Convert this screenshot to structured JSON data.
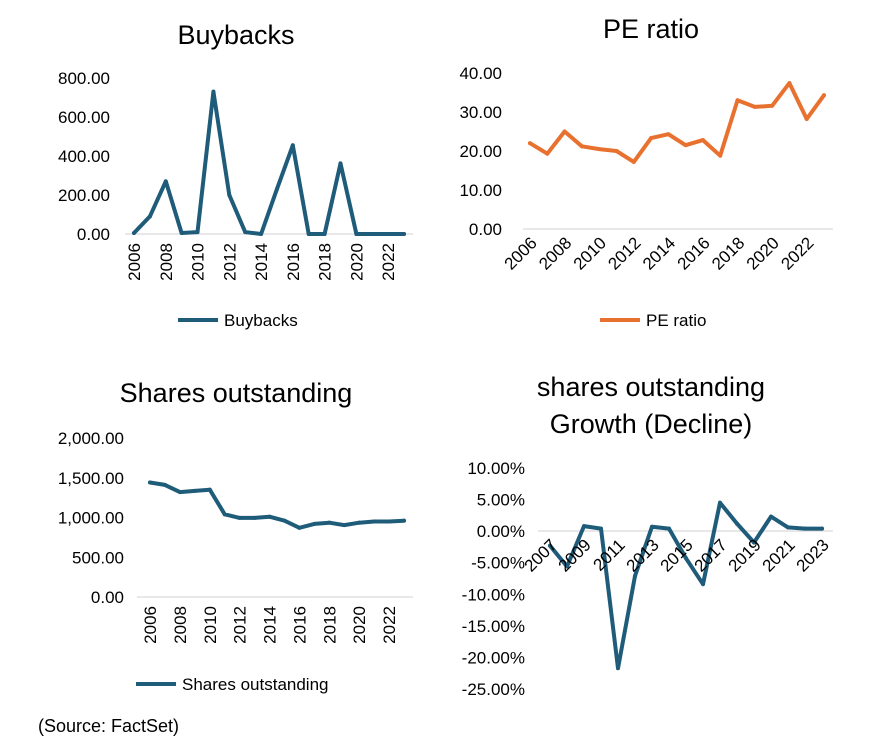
{
  "source": "(Source: FactSet)",
  "chart_data": [
    {
      "id": "buybacks",
      "type": "line",
      "title": "Buybacks",
      "color": "#1f5c7a",
      "x": [
        2006,
        2007,
        2008,
        2009,
        2010,
        2011,
        2012,
        2013,
        2014,
        2015,
        2016,
        2017,
        2018,
        2019,
        2020,
        2021,
        2022,
        2023
      ],
      "series": [
        {
          "name": "Buybacks",
          "values": [
            5,
            90,
            270,
            5,
            10,
            730,
            200,
            10,
            0,
            230,
            455,
            0,
            0,
            362,
            0,
            0,
            0,
            0
          ]
        }
      ],
      "y_ticks": [
        "800.00",
        "600.00",
        "400.00",
        "200.00",
        "0.00"
      ],
      "y_tick_values": [
        800,
        600,
        400,
        200,
        0
      ],
      "x_ticks": [
        "2006",
        "2008",
        "2010",
        "2012",
        "2014",
        "2016",
        "2018",
        "2020",
        "2022"
      ],
      "ylim": [
        0,
        800
      ],
      "legend": "bottom"
    },
    {
      "id": "pe",
      "type": "line",
      "title": "PE ratio",
      "color": "#e8712f",
      "x": [
        2006,
        2007,
        2008,
        2009,
        2010,
        2011,
        2012,
        2013,
        2014,
        2015,
        2016,
        2017,
        2018,
        2019,
        2020,
        2021,
        2022,
        2023
      ],
      "series": [
        {
          "name": "PE ratio",
          "values": [
            22,
            19.3,
            25,
            21.2,
            20.5,
            20,
            17.2,
            23.3,
            24.3,
            21.5,
            22.8,
            18.8,
            33,
            31.3,
            31.6,
            37.4,
            28.2,
            34.3
          ]
        }
      ],
      "y_ticks": [
        "40.00",
        "30.00",
        "20.00",
        "10.00",
        "0.00"
      ],
      "y_tick_values": [
        40,
        30,
        20,
        10,
        0
      ],
      "x_ticks": [
        "2006",
        "2008",
        "2010",
        "2012",
        "2014",
        "2016",
        "2018",
        "2020",
        "2022"
      ],
      "ylim": [
        0,
        40
      ],
      "legend": "bottom"
    },
    {
      "id": "shares",
      "type": "line",
      "title": "Shares outstanding",
      "color": "#1f5c7a",
      "x": [
        2006,
        2007,
        2008,
        2009,
        2010,
        2011,
        2012,
        2013,
        2014,
        2015,
        2016,
        2017,
        2018,
        2019,
        2020,
        2021,
        2022,
        2023
      ],
      "series": [
        {
          "name": "Shares outstanding",
          "values": [
            1440,
            1410,
            1320,
            1335,
            1350,
            1040,
            995,
            995,
            1010,
            960,
            870,
            920,
            935,
            905,
            935,
            950,
            950,
            960
          ]
        }
      ],
      "y_ticks": [
        "2,000.00",
        "1,500.00",
        "1,000.00",
        "500.00",
        "0.00"
      ],
      "y_tick_values": [
        2000,
        1500,
        1000,
        500,
        0
      ],
      "x_ticks": [
        "2006",
        "2008",
        "2010",
        "2012",
        "2014",
        "2016",
        "2018",
        "2020",
        "2022"
      ],
      "ylim": [
        0,
        2000
      ],
      "legend": "bottom"
    },
    {
      "id": "growth",
      "type": "line",
      "title_lines": [
        "shares outstanding",
        "Growth (Decline)"
      ],
      "color": "#1f5c7a",
      "x": [
        2007,
        2008,
        2009,
        2010,
        2011,
        2012,
        2013,
        2014,
        2015,
        2016,
        2017,
        2018,
        2019,
        2020,
        2021,
        2022,
        2023
      ],
      "series": [
        {
          "name": "",
          "values": [
            -2.3,
            -5.6,
            0.8,
            0.4,
            -21.7,
            -7.1,
            0.7,
            0.4,
            -4.3,
            -8.4,
            4.5,
            1.2,
            -1.8,
            2.3,
            0.6,
            0.4,
            0.4
          ]
        }
      ],
      "y_ticks": [
        "10.00%",
        "5.00%",
        "0.00%",
        "-5.00%",
        "-10.00%",
        "-15.00%",
        "-20.00%",
        "-25.00%"
      ],
      "y_tick_values": [
        10,
        5,
        0,
        -5,
        -10,
        -15,
        -20,
        -25
      ],
      "x_ticks": [
        "2007",
        "2009",
        "2011",
        "2013",
        "2015",
        "2017",
        "2019",
        "2021",
        "2023"
      ],
      "ylim": [
        -25,
        10
      ]
    }
  ]
}
